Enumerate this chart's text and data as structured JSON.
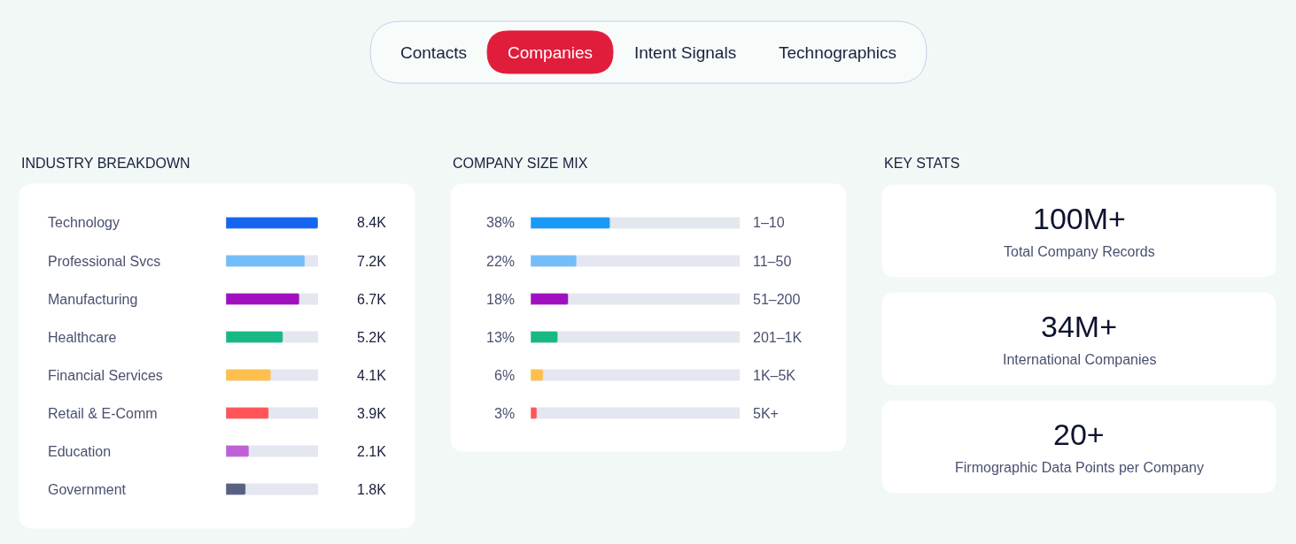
{
  "chart_data": [
    {
      "type": "other",
      "categories": [
        "Contacts",
        "Companies",
        "Intent Signals",
        "Technographics"
      ],
      "colors": [
        null,
        "#e11d3c",
        null,
        null
      ]
    },
    {
      "type": "bar",
      "orientation": "horizontal",
      "title": "INDUSTRY BREAKDOWN",
      "categories": [
        "Technology",
        "Professional Svcs",
        "Manufacturing",
        "Healthcare",
        "Financial Services",
        "Retail & E-Comm",
        "Education",
        "Government"
      ],
      "values": [
        8400,
        7200,
        6700,
        5200,
        4100,
        3900,
        2100,
        1800
      ],
      "value_labels": [
        "8.4K",
        "7.2K",
        "6.7K",
        "5.2K",
        "4.1K",
        "3.9K",
        "2.1K",
        "1.8K"
      ],
      "colors": [
        "#1565f0",
        "#74bdf8",
        "#a010c0",
        "#18b884",
        "#ffbf4d",
        "#ff5558",
        "#c060d8",
        "#5a6080"
      ],
      "xlim": [
        0,
        8400
      ],
      "tick_labels": false
    },
    {
      "type": "bar",
      "orientation": "horizontal",
      "title": "COMPANY SIZE MIX",
      "categories": [
        "1–10",
        "11–50",
        "51–200",
        "201–1K",
        "1K–5K",
        "5K+"
      ],
      "values": [
        38,
        22,
        18,
        13,
        6,
        3
      ],
      "value_labels": [
        "38%",
        "22%",
        "18%",
        "13%",
        "6%",
        "3%"
      ],
      "colors": [
        "#1a9af5",
        "#74bdf8",
        "#a010c0",
        "#18b884",
        "#ffbf4d",
        "#ff5558"
      ],
      "xlim": [
        0,
        100
      ],
      "tick_labels": false
    },
    {
      "type": "other",
      "title": "KEY STATS",
      "annotations": [
        "100M+",
        "Total Company Records",
        "34M+",
        "International Companies",
        "20+",
        "Firmographic Data Points per Company"
      ]
    }
  ]
}
